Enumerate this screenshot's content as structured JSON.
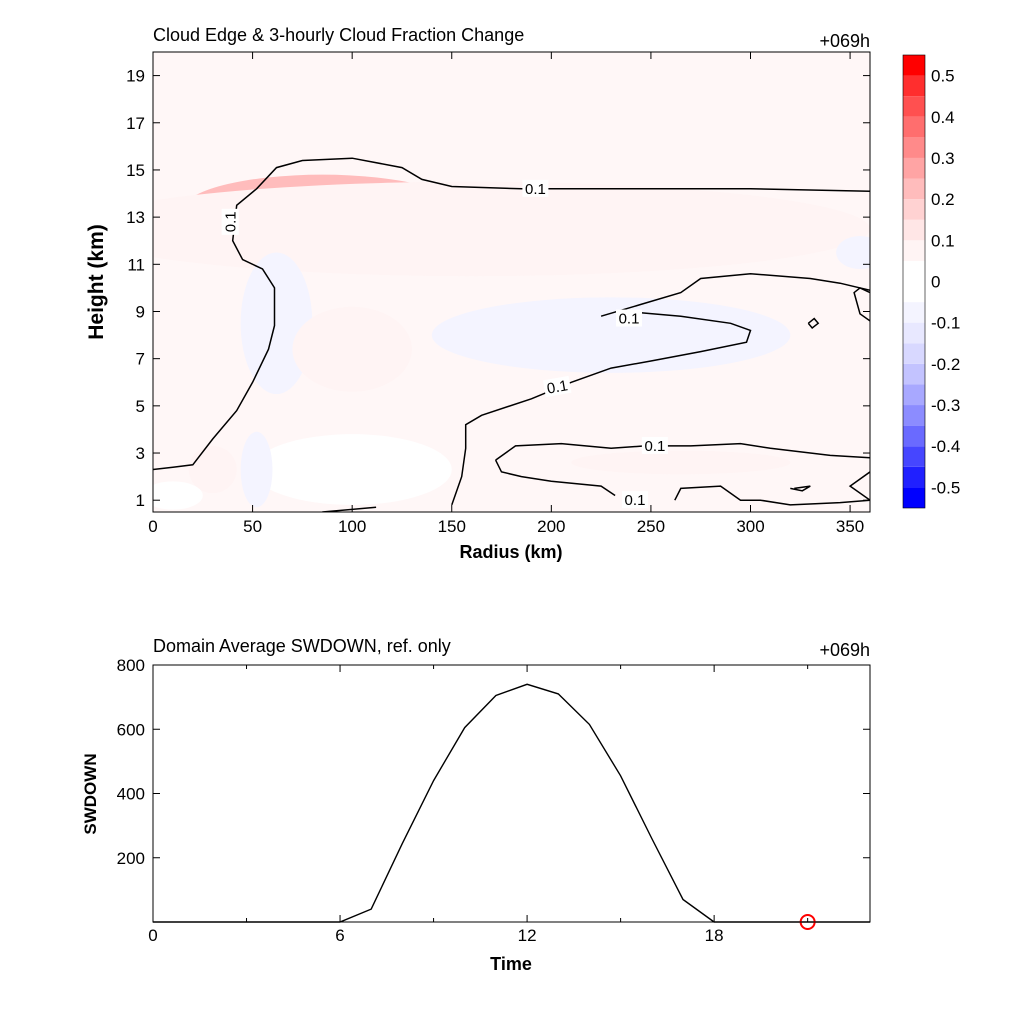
{
  "chart_data": [
    {
      "type": "heatmap",
      "title": "Cloud Edge & 3-hourly Cloud Fraction Change",
      "time_label": "+069h",
      "xlabel": "Radius (km)",
      "ylabel": "Height (km)",
      "xlim": [
        0,
        360
      ],
      "ylim": [
        0.5,
        20
      ],
      "xticks": [
        0,
        50,
        100,
        150,
        200,
        250,
        300,
        350
      ],
      "yticks": [
        1,
        3,
        5,
        7,
        9,
        11,
        13,
        15,
        17,
        19
      ],
      "colorbar": {
        "levels": [
          -0.55,
          -0.5,
          -0.45,
          -0.4,
          -0.35,
          -0.3,
          -0.25,
          -0.2,
          -0.15,
          -0.1,
          -0.05,
          0.05,
          0.1,
          0.15,
          0.2,
          0.25,
          0.3,
          0.35,
          0.4,
          0.45,
          0.5,
          0.55
        ],
        "tick_labels": [
          "-0.5",
          "-0.4",
          "-0.3",
          "-0.2",
          "-0.1",
          "0",
          "0.1",
          "0.2",
          "0.3",
          "0.4",
          "0.5"
        ],
        "tick_values": [
          -0.5,
          -0.4,
          -0.3,
          -0.2,
          -0.1,
          0,
          0.1,
          0.2,
          0.3,
          0.4,
          0.5
        ],
        "colors": [
          "#0000ff",
          "#2020ff",
          "#4646ff",
          "#6a6aff",
          "#8c8cff",
          "#a8a8ff",
          "#c3c3ff",
          "#d8d8ff",
          "#e8e8ff",
          "#f4f4ff",
          "#ffffff",
          "#fff4f4",
          "#ffe6e6",
          "#ffd2d2",
          "#ffbcbc",
          "#ffa4a4",
          "#ff8a8a",
          "#ff6e6e",
          "#ff5050",
          "#ff2e2e",
          "#ff0000"
        ]
      },
      "anomalies": [
        {
          "x": 90,
          "y": 13.4,
          "rx": 40,
          "ry": 1.0,
          "value": 0.3
        },
        {
          "x": 85,
          "y": 13.3,
          "rx": 70,
          "ry": 1.5,
          "value": 0.2
        },
        {
          "x": 200,
          "y": 13.0,
          "rx": 110,
          "ry": 1.3,
          "value": 0.15
        },
        {
          "x": 270,
          "y": 13.0,
          "rx": 40,
          "ry": 0.6,
          "value": 0.25
        },
        {
          "x": 160,
          "y": 12.5,
          "rx": 200,
          "ry": 2.0,
          "value": 0.06
        },
        {
          "x": 62,
          "y": 8.3,
          "rx": 10,
          "ry": 1.8,
          "value": -0.22
        },
        {
          "x": 62,
          "y": 8.5,
          "rx": 18,
          "ry": 3.0,
          "value": -0.1
        },
        {
          "x": 215,
          "y": 8.0,
          "rx": 35,
          "ry": 1.0,
          "value": -0.15
        },
        {
          "x": 230,
          "y": 8.0,
          "rx": 90,
          "ry": 1.6,
          "value": -0.08
        },
        {
          "x": 355,
          "y": 11.5,
          "rx": 12,
          "ry": 0.7,
          "value": -0.1
        },
        {
          "x": 100,
          "y": 7.4,
          "rx": 30,
          "ry": 1.8,
          "value": 0.06
        },
        {
          "x": 100,
          "y": 2.3,
          "rx": 50,
          "ry": 1.5,
          "value": 0.04
        },
        {
          "x": 265,
          "y": 2.6,
          "rx": 55,
          "ry": 0.5,
          "value": 0.06
        },
        {
          "x": 52,
          "y": 2.3,
          "rx": 8,
          "ry": 1.6,
          "value": -0.07
        },
        {
          "x": 30,
          "y": 2.3,
          "rx": 12,
          "ry": 1.0,
          "value": 0.05
        },
        {
          "x": 10,
          "y": 1.2,
          "rx": 15,
          "ry": 0.6,
          "value": -0.05
        }
      ],
      "contour_level_label": "0.1",
      "contours": [
        {
          "points": [
            [
              0,
              2.3
            ],
            [
              10,
              2.4
            ],
            [
              20,
              2.5
            ],
            [
              30,
              3.6
            ],
            [
              42,
              4.8
            ],
            [
              50,
              6.0
            ],
            [
              58,
              7.4
            ],
            [
              61,
              8.4
            ],
            [
              61,
              10.0
            ],
            [
              55,
              10.8
            ],
            [
              45,
              11.2
            ],
            [
              40,
              12.0
            ],
            [
              42,
              13.5
            ],
            [
              52,
              14.2
            ],
            [
              62,
              15.1
            ],
            [
              75,
              15.4
            ],
            [
              100,
              15.5
            ],
            [
              125,
              15.1
            ],
            [
              135,
              14.6
            ],
            [
              150,
              14.3
            ],
            [
              185,
              14.2
            ],
            [
              250,
              14.2
            ],
            [
              300,
              14.2
            ],
            [
              360,
              14.1
            ]
          ]
        },
        {
          "points": [
            [
              225,
              8.8
            ],
            [
              245,
              9.3
            ],
            [
              265,
              9.8
            ],
            [
              275,
              10.4
            ],
            [
              300,
              10.6
            ],
            [
              330,
              10.4
            ],
            [
              345,
              10.2
            ],
            [
              355,
              10.0
            ],
            [
              360,
              9.8
            ]
          ]
        },
        {
          "points": [
            [
              238,
              9.0
            ],
            [
              265,
              8.8
            ],
            [
              290,
              8.5
            ],
            [
              300,
              8.2
            ],
            [
              298,
              7.7
            ],
            [
              275,
              7.3
            ],
            [
              250,
              6.9
            ],
            [
              230,
              6.6
            ],
            [
              210,
              6.0
            ],
            [
              190,
              5.3
            ],
            [
              165,
              4.6
            ],
            [
              157,
              4.2
            ],
            [
              157,
              3.2
            ],
            [
              155,
              2.0
            ],
            [
              150,
              0.8
            ]
          ]
        },
        {
          "points": [
            [
              360,
              8.6
            ],
            [
              355,
              8.9
            ],
            [
              352,
              9.8
            ],
            [
              355,
              10.0
            ],
            [
              360,
              9.9
            ]
          ]
        },
        {
          "points": [
            [
              172,
              2.7
            ],
            [
              182,
              3.3
            ],
            [
              205,
              3.4
            ],
            [
              230,
              3.2
            ],
            [
              247,
              3.3
            ],
            [
              270,
              3.3
            ],
            [
              295,
              3.4
            ],
            [
              310,
              3.2
            ],
            [
              340,
              2.9
            ],
            [
              360,
              2.8
            ]
          ]
        },
        {
          "points": [
            [
              172,
              2.7
            ],
            [
              175,
              2.2
            ],
            [
              185,
              2.0
            ],
            [
              200,
              1.8
            ],
            [
              225,
              1.6
            ],
            [
              232,
              1.2
            ]
          ]
        },
        {
          "points": [
            [
              262,
              1.0
            ],
            [
              265,
              1.5
            ],
            [
              285,
              1.6
            ],
            [
              295,
              1.0
            ],
            [
              305,
              1.0
            ],
            [
              320,
              0.8
            ],
            [
              345,
              0.9
            ],
            [
              360,
              1.0
            ]
          ]
        },
        {
          "points": [
            [
              360,
              2.2
            ],
            [
              350,
              1.6
            ],
            [
              360,
              1.0
            ]
          ]
        },
        {
          "points": [
            [
              85,
              0.5
            ],
            [
              112,
              0.7
            ]
          ]
        },
        {
          "points": [
            [
              322,
              1.5
            ],
            [
              330,
              1.6
            ],
            [
              326,
              1.4
            ],
            [
              320,
              1.5
            ]
          ]
        },
        {
          "points": [
            [
              329,
              8.5
            ],
            [
              332,
              8.7
            ],
            [
              334,
              8.5
            ],
            [
              331,
              8.3
            ],
            [
              329,
              8.5
            ]
          ]
        }
      ],
      "contour_labels": [
        {
          "text": "0.1",
          "x": 192,
          "y": 14.2,
          "angle": 0
        },
        {
          "text": "0.1",
          "x": 39,
          "y": 12.8,
          "angle": -90
        },
        {
          "text": "0.1",
          "x": 239,
          "y": 8.7,
          "angle": 0
        },
        {
          "text": "0.1",
          "x": 203,
          "y": 5.8,
          "angle": -10
        },
        {
          "text": "0.1",
          "x": 252,
          "y": 3.3,
          "angle": 0
        },
        {
          "text": "0.1",
          "x": 242,
          "y": 1.0,
          "angle": 0
        }
      ]
    },
    {
      "type": "line",
      "title": "Domain Average SWDOWN, ref. only",
      "time_label": "+069h",
      "xlabel": "Time",
      "ylabel": "SWDOWN",
      "xlim": [
        0,
        23
      ],
      "ylim": [
        0,
        800
      ],
      "xticks": [
        0,
        6,
        12,
        18
      ],
      "yticks": [
        200,
        400,
        600,
        800
      ],
      "x": [
        0,
        6,
        7,
        8,
        9,
        10,
        11,
        12,
        13,
        14,
        15,
        16,
        17,
        18,
        23
      ],
      "y": [
        0,
        0,
        40,
        245,
        440,
        605,
        705,
        740,
        710,
        615,
        455,
        260,
        70,
        0,
        0
      ],
      "marker": {
        "x": 21,
        "y": 0,
        "color": "#ff0000"
      }
    }
  ]
}
